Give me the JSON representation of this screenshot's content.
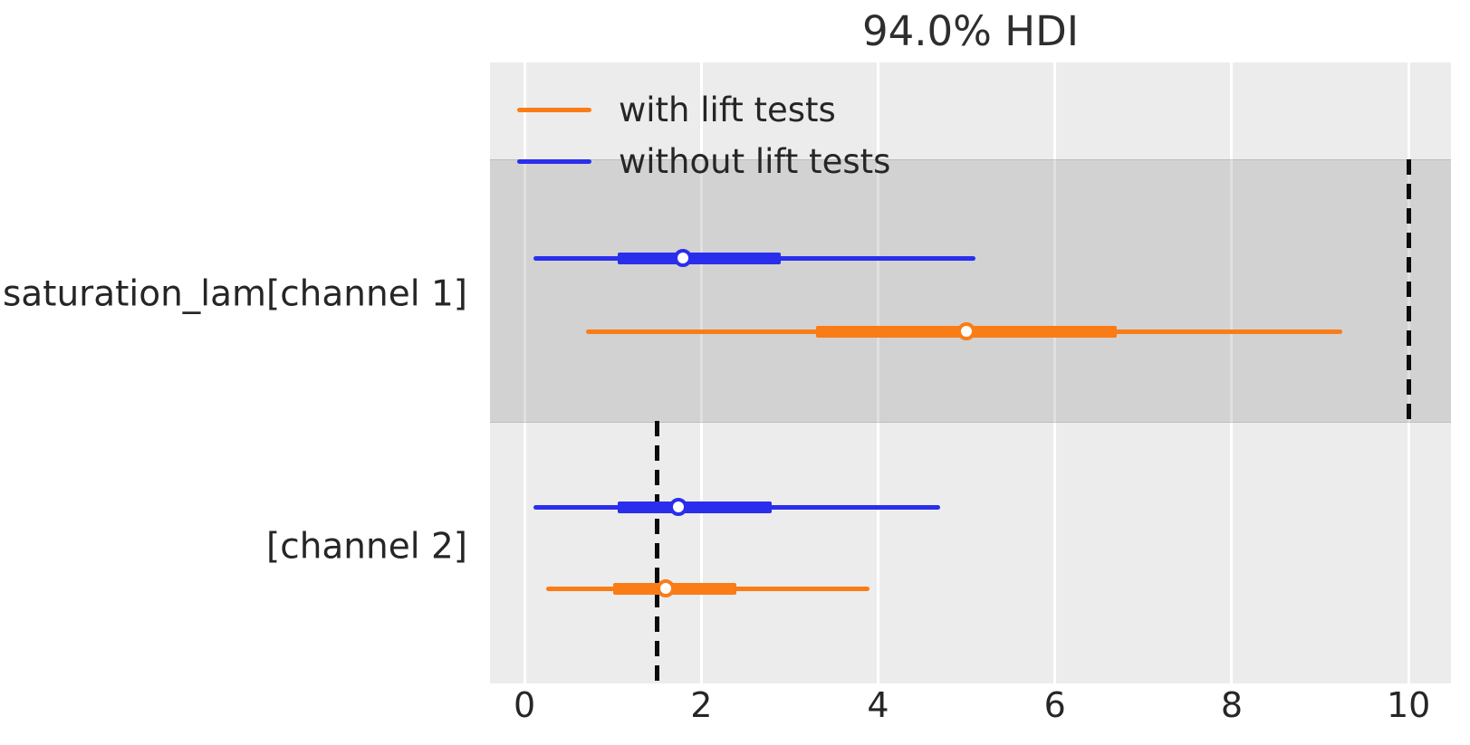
{
  "chart_data": {
    "type": "forest",
    "title": "94.0% HDI",
    "hdi_prob": 94.0,
    "xlabel": "",
    "ylabel": "",
    "xlim": [
      -0.39,
      10.48
    ],
    "x_ticks": [
      0,
      2,
      4,
      6,
      8,
      10
    ],
    "grid": "vertical-white-on-gray",
    "legend_position": "upper left",
    "legend": [
      {
        "id": "with-lift-tests",
        "label": "with lift tests",
        "color": "#fa7c17"
      },
      {
        "id": "without-lift-tests",
        "label": "without lift tests",
        "color": "#2a2eec"
      }
    ],
    "variables": [
      {
        "id": "channel-1",
        "label": "saturation_lam[channel 1]",
        "reference_value": 10,
        "ref_span_frac": [
          0.156,
          0.577
        ],
        "band": {
          "top_frac": 0.156,
          "bottom_frac": 0.577
        },
        "series": [
          {
            "model": "without lift tests",
            "id": "without-lift-tests",
            "color": "#2a2eec",
            "hdi_lo": 0.1,
            "q25": 1.05,
            "median": 1.8,
            "q75": 2.9,
            "hdi_hi": 5.1,
            "y_frac": 0.315
          },
          {
            "model": "with lift tests",
            "id": "with-lift-tests",
            "color": "#fa7c17",
            "hdi_lo": 0.7,
            "q25": 3.3,
            "median": 5.0,
            "q75": 6.7,
            "hdi_hi": 9.25,
            "y_frac": 0.434
          }
        ]
      },
      {
        "id": "channel-2",
        "label": "[channel 2]",
        "reference_value": 1.5,
        "ref_span_frac": [
          0.577,
          1.0
        ],
        "band": null,
        "series": [
          {
            "model": "without lift tests",
            "id": "without-lift-tests",
            "color": "#2a2eec",
            "hdi_lo": 0.1,
            "q25": 1.05,
            "median": 1.75,
            "q75": 2.8,
            "hdi_hi": 4.7,
            "y_frac": 0.717
          },
          {
            "model": "with lift tests",
            "id": "with-lift-tests",
            "color": "#fa7c17",
            "hdi_lo": 0.25,
            "q25": 1.0,
            "median": 1.6,
            "q75": 2.4,
            "hdi_hi": 3.9,
            "y_frac": 0.847
          }
        ]
      }
    ],
    "colors": {
      "plot_background": "#ececec",
      "band": "#d4d4d4",
      "gridline": "#ffffff",
      "reference_line": "#0b0b0b",
      "text": "#262626"
    }
  }
}
